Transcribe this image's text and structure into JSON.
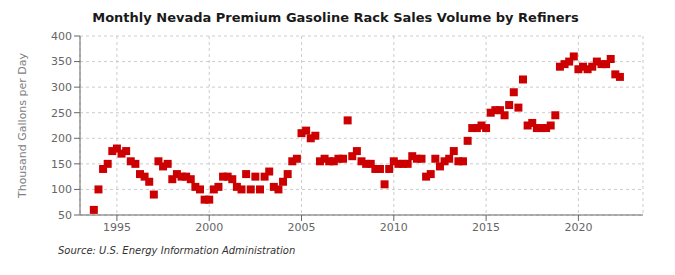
{
  "chart_data": {
    "type": "scatter",
    "title": "Monthly Nevada Premium Gasoline Rack Sales Volume by Refiners",
    "y_label": "Thousand Gallons per Day",
    "annotations": [
      "Source: U.S. Energy Information Administration"
    ],
    "color": "#cc0000",
    "marker": "square",
    "grid": true,
    "xlim": [
      1993.0,
      2023.5
    ],
    "ylim": [
      50,
      400
    ],
    "xticks": [
      1995,
      2000,
      2005,
      2010,
      2015,
      2020
    ],
    "yticks": [
      50,
      100,
      150,
      200,
      250,
      300,
      350,
      400
    ],
    "x": [
      1993.75,
      1994.0,
      1994.25,
      1994.5,
      1994.75,
      1995.0,
      1995.25,
      1995.5,
      1995.75,
      1996.0,
      1996.25,
      1996.5,
      1996.75,
      1997.0,
      1997.25,
      1997.5,
      1997.75,
      1998.0,
      1998.25,
      1998.5,
      1998.75,
      1999.0,
      1999.25,
      1999.5,
      1999.75,
      2000.0,
      2000.25,
      2000.5,
      2000.75,
      2001.0,
      2001.25,
      2001.5,
      2001.75,
      2002.0,
      2002.25,
      2002.5,
      2002.75,
      2003.0,
      2003.25,
      2003.5,
      2003.75,
      2004.0,
      2004.25,
      2004.5,
      2004.75,
      2005.0,
      2005.25,
      2005.5,
      2005.75,
      2006.0,
      2006.25,
      2006.5,
      2006.75,
      2007.0,
      2007.25,
      2007.5,
      2007.75,
      2008.0,
      2008.25,
      2008.5,
      2008.75,
      2009.0,
      2009.25,
      2009.5,
      2009.75,
      2010.0,
      2010.25,
      2010.5,
      2010.75,
      2011.0,
      2011.25,
      2011.5,
      2011.75,
      2012.0,
      2012.25,
      2012.5,
      2012.75,
      2013.0,
      2013.25,
      2013.5,
      2013.75,
      2014.0,
      2014.25,
      2014.5,
      2014.75,
      2015.0,
      2015.25,
      2015.5,
      2015.75,
      2016.0,
      2016.25,
      2016.5,
      2016.75,
      2017.0,
      2017.25,
      2017.5,
      2017.75,
      2018.0,
      2018.25,
      2018.5,
      2018.75,
      2019.0,
      2019.25,
      2019.5,
      2019.75,
      2020.0,
      2020.25,
      2020.5,
      2020.75,
      2021.0,
      2021.25,
      2021.5,
      2021.75,
      2022.0,
      2022.25
    ],
    "values": [
      60,
      100,
      140,
      150,
      175,
      180,
      170,
      175,
      155,
      150,
      130,
      125,
      115,
      90,
      155,
      145,
      150,
      120,
      130,
      125,
      125,
      120,
      105,
      100,
      80,
      80,
      100,
      105,
      125,
      125,
      120,
      105,
      100,
      130,
      100,
      125,
      100,
      125,
      135,
      105,
      100,
      115,
      130,
      155,
      160,
      210,
      215,
      200,
      205,
      155,
      160,
      155,
      155,
      160,
      160,
      235,
      165,
      175,
      155,
      150,
      150,
      140,
      140,
      110,
      140,
      155,
      150,
      150,
      150,
      165,
      160,
      160,
      125,
      130,
      160,
      145,
      155,
      160,
      175,
      155,
      155,
      195,
      220,
      220,
      225,
      220,
      250,
      255,
      255,
      245,
      265,
      290,
      260,
      315,
      225,
      230,
      220,
      220,
      220,
      225,
      245,
      340,
      345,
      350,
      360,
      335,
      340,
      335,
      340,
      350,
      345,
      345,
      355,
      325,
      320
    ]
  }
}
